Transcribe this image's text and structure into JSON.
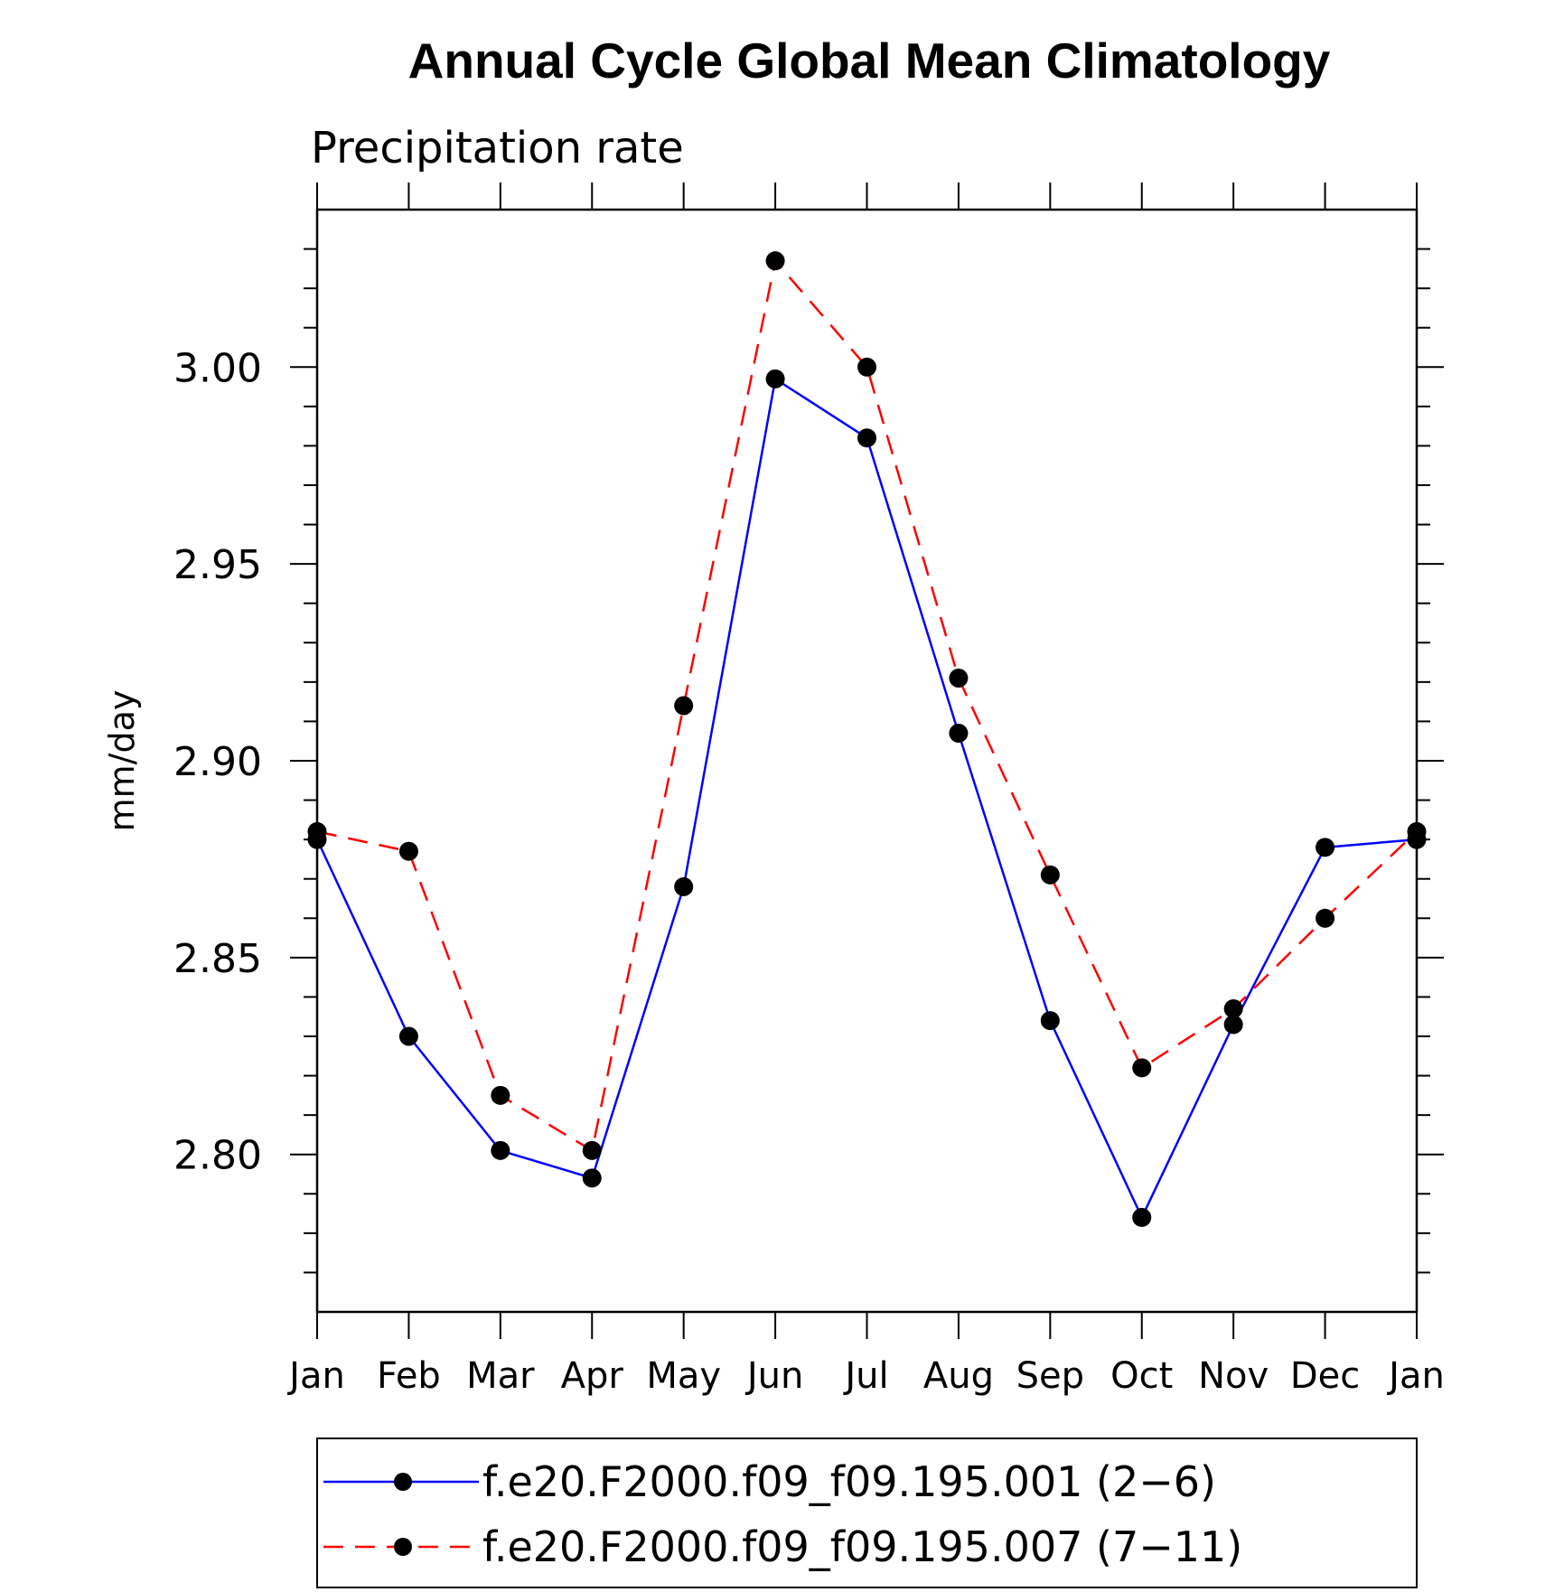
{
  "chart_data": {
    "type": "line",
    "title": "Annual Cycle Global Mean Climatology",
    "subtitle": "Precipitation rate",
    "xlabel": "",
    "ylabel": "mm/day",
    "categories": [
      "Jan",
      "Feb",
      "Mar",
      "Apr",
      "May",
      "Jun",
      "Jul",
      "Aug",
      "Sep",
      "Oct",
      "Nov",
      "Dec",
      "Jan"
    ],
    "ylim": [
      2.76,
      3.04
    ],
    "yticks": [
      "2.80",
      "2.85",
      "2.90",
      "2.95",
      "3.00"
    ],
    "grid": false,
    "legend_position": "bottom",
    "series": [
      {
        "name": "f.e20.F2000.f09_f09.195.001 (2−6)",
        "color": "#0000ff",
        "line_style": "solid",
        "marker": "filled-circle",
        "values": [
          2.88,
          2.83,
          2.801,
          2.794,
          2.868,
          2.997,
          2.982,
          2.907,
          2.834,
          2.784,
          2.833,
          2.878,
          2.88
        ]
      },
      {
        "name": "f.e20.F2000.f09_f09.195.007 (7−11)",
        "color": "#ff0000",
        "line_style": "dashed",
        "marker": "filled-circle",
        "values": [
          2.882,
          2.877,
          2.815,
          2.801,
          2.914,
          3.027,
          3.0,
          2.921,
          2.871,
          2.822,
          2.837,
          2.86,
          2.882
        ]
      }
    ]
  }
}
